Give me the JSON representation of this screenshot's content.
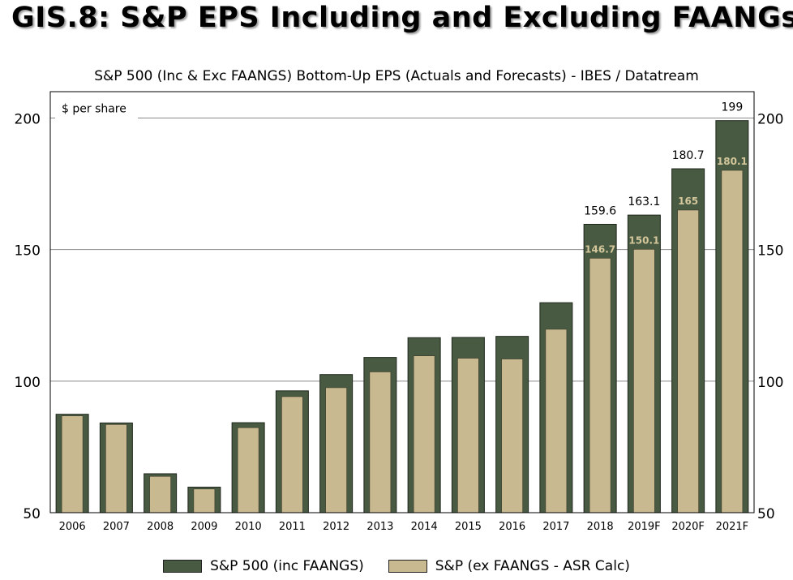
{
  "title": "GIS.8: S&P EPS Including and Excluding FAANGs",
  "chart_data": {
    "type": "bar",
    "title": "S&P 500 (Inc & Exc FAANGS)  Bottom-Up EPS (Actuals and Forecasts) - IBES / Datatream",
    "ylabel": "$ per share",
    "categories": [
      "2006",
      "2007",
      "2008",
      "2009",
      "2010",
      "2011",
      "2012",
      "2013",
      "2014",
      "2015",
      "2016",
      "2017",
      "2018",
      "2019F",
      "2020F",
      "2021F"
    ],
    "ylim": [
      50,
      210
    ],
    "yticks": [
      50,
      100,
      150,
      200
    ],
    "grid": true,
    "series": [
      {
        "name": "S&P 500 (inc FAANGS)",
        "color": "#485a42",
        "values": [
          87.4,
          84.1,
          64.8,
          59.7,
          84.2,
          96.3,
          102.5,
          109.0,
          116.5,
          116.6,
          117.0,
          129.8,
          159.6,
          163.1,
          180.7,
          199
        ]
      },
      {
        "name": "S&P (ex FAANGS - ASR Calc)",
        "color": "#c8b990",
        "values": [
          86.8,
          83.5,
          63.8,
          59.0,
          82.3,
          94.1,
          97.5,
          103.5,
          109.6,
          108.7,
          108.4,
          119.7,
          146.7,
          150.1,
          165,
          180.1
        ]
      }
    ],
    "outer_labels": [
      "",
      "",
      "",
      "",
      "",
      "",
      "",
      "",
      "",
      "",
      "",
      "",
      "159.6",
      "163.1",
      "180.7",
      "199"
    ],
    "inner_labels": [
      "",
      "",
      "",
      "",
      "",
      "",
      "",
      "",
      "",
      "",
      "",
      "",
      "146.7",
      "150.1",
      "165",
      "180.1"
    ]
  }
}
